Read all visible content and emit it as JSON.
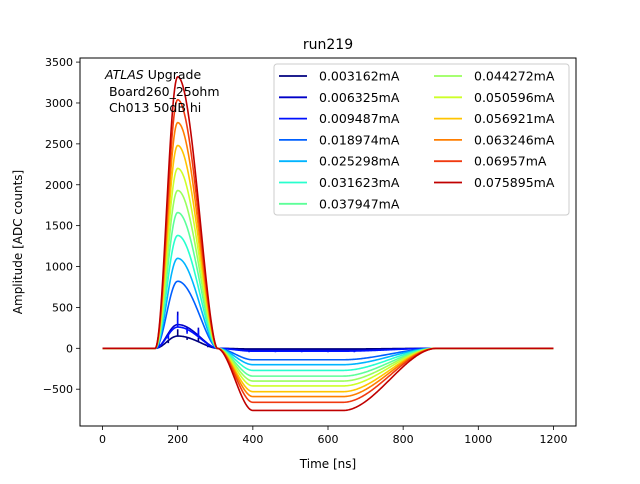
{
  "chart_data": {
    "type": "line",
    "title": "run219",
    "xlabel": "Time [ns]",
    "ylabel": "Amplitude [ADC counts]",
    "xlim": [
      -60,
      1260
    ],
    "ylim": [
      -950,
      3550
    ],
    "xticks": [
      0,
      200,
      400,
      600,
      800,
      1000,
      1200
    ],
    "yticks": [
      -500,
      0,
      500,
      1000,
      1500,
      2000,
      2500,
      3000,
      3500
    ],
    "grid": false,
    "legend": {
      "placement": "top-right",
      "columns": 2
    },
    "annotation": {
      "italic": "ATLAS",
      "line1_rest": " Upgrade",
      "line2": "Board260_25ohm",
      "line3": "Ch013 50dB hi"
    },
    "pulse_model": {
      "baseline": 0,
      "rise_start_ns": 140,
      "peak_ns": 200,
      "zero_cross_ns": 305,
      "undershoot_ns": 400,
      "undershoot_end_ns": 640,
      "recovery_ns": 890,
      "end_ns": 1200
    },
    "small_signal_spikes_ns": [
      150,
      175,
      200,
      225,
      255,
      280,
      320,
      355,
      390,
      425,
      460,
      495,
      530,
      565,
      600,
      635,
      670
    ],
    "series": [
      {
        "name": "0.003162mA",
        "color": "#00007f",
        "peak": 150,
        "undershoot": -8,
        "noisy": true
      },
      {
        "name": "0.006325mA",
        "color": "#0000c8",
        "peak": 290,
        "undershoot": -25,
        "noisy": true
      },
      {
        "name": "0.009487mA",
        "color": "#0010ff",
        "peak": 260,
        "undershoot": -35,
        "noisy": true
      },
      {
        "name": "0.018974mA",
        "color": "#0060ff",
        "peak": 820,
        "undershoot": -140,
        "noisy": false
      },
      {
        "name": "0.025298mA",
        "color": "#00b4ff",
        "peak": 1100,
        "undershoot": -200,
        "noisy": false
      },
      {
        "name": "0.031623mA",
        "color": "#28ffce",
        "peak": 1380,
        "undershoot": -270,
        "noisy": false
      },
      {
        "name": "0.037947mA",
        "color": "#5dff99",
        "peak": 1660,
        "undershoot": -340,
        "noisy": false
      },
      {
        "name": "0.044272mA",
        "color": "#9aff5d",
        "peak": 1930,
        "undershoot": -400,
        "noisy": false
      },
      {
        "name": "0.050596mA",
        "color": "#ceff28",
        "peak": 2200,
        "undershoot": -460,
        "noisy": false
      },
      {
        "name": "0.056921mA",
        "color": "#ffc400",
        "peak": 2480,
        "undershoot": -530,
        "noisy": false
      },
      {
        "name": "0.063246mA",
        "color": "#ff7e00",
        "peak": 2760,
        "undershoot": -590,
        "noisy": false
      },
      {
        "name": "0.06957mA",
        "color": "#f03a10",
        "peak": 3040,
        "undershoot": -660,
        "noisy": false
      },
      {
        "name": "0.075895mA",
        "color": "#c00000",
        "peak": 3320,
        "undershoot": -760,
        "noisy": false
      }
    ]
  }
}
